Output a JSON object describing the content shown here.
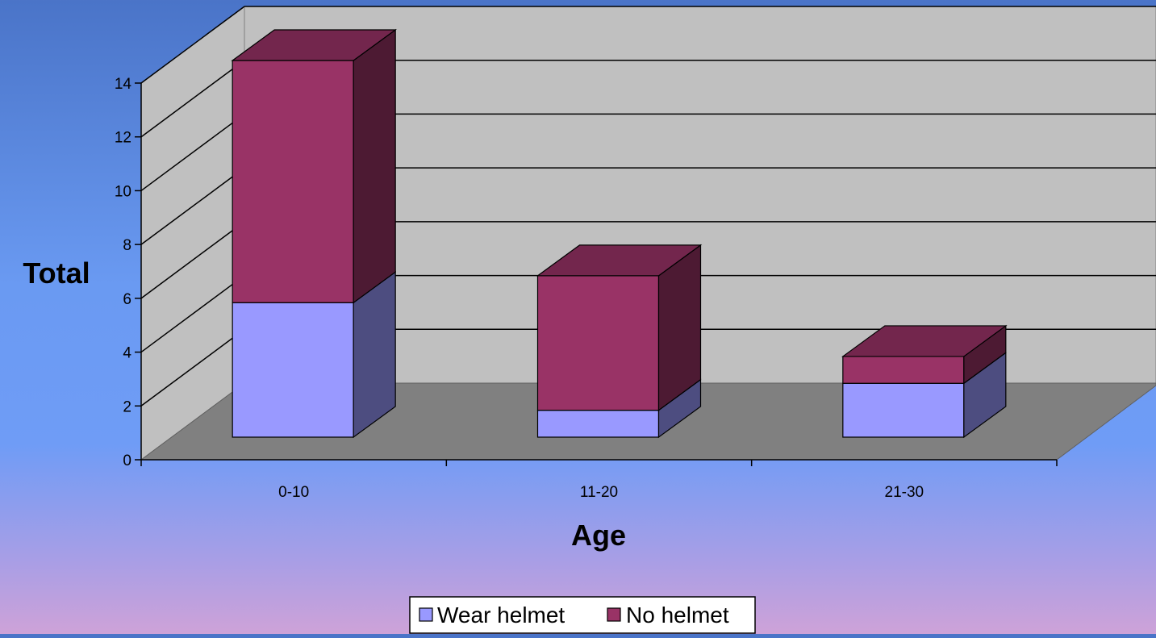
{
  "chart_data": {
    "type": "bar",
    "subtype": "stacked-3d-column",
    "categories": [
      "0-10",
      "11-20",
      "21-30"
    ],
    "series": [
      {
        "name": "Wear helmet",
        "values": [
          5,
          1,
          2
        ],
        "color": "#9999ff"
      },
      {
        "name": "No helmet",
        "values": [
          9,
          5,
          1
        ],
        "color": "#993366"
      }
    ],
    "xlabel": "Age",
    "ylabel": "Total",
    "ylim": [
      0,
      14
    ],
    "yticks": [
      "0",
      "2",
      "4",
      "6",
      "8",
      "10",
      "12",
      "14"
    ],
    "grid": true,
    "legend_position": "bottom-center"
  },
  "colors": {
    "back_wall": "#c0c0c0",
    "floor": "#808080",
    "gridline": "#000000"
  }
}
